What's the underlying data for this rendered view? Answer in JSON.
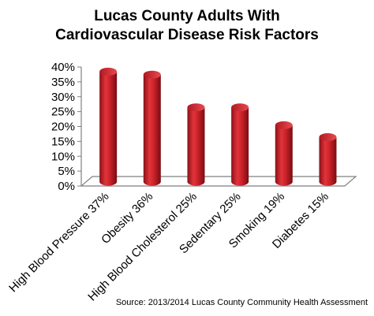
{
  "chart_data": {
    "type": "bar",
    "title_lines": [
      "Lucas County Adults With",
      "Cardiovascular Disease Risk Factors"
    ],
    "categories": [
      "High Blood Pressure 37%",
      "Obesity 36%",
      "High Blood Cholesterol 25%",
      "Sedentary 25%",
      "Smoking 19%",
      "Diabetes 15%"
    ],
    "values": [
      37,
      36,
      25,
      25,
      19,
      15
    ],
    "y_ticks": [
      0,
      5,
      10,
      15,
      20,
      25,
      30,
      35,
      40
    ],
    "y_tick_labels": [
      "0%",
      "5%",
      "10%",
      "15%",
      "20%",
      "25%",
      "30%",
      "35%",
      "40%"
    ],
    "ylim": [
      0,
      40
    ],
    "xlabel": "",
    "ylabel": "",
    "grid": false,
    "legend": "none",
    "bar_style": "3d-cylinder",
    "colors": {
      "bar": "#c8202a",
      "bar_dark": "#7a0c12",
      "bar_light": "#ee5a5f",
      "axis": "#808080"
    },
    "source": "Source: 2013/2014 Lucas County Community Health Assessment"
  }
}
